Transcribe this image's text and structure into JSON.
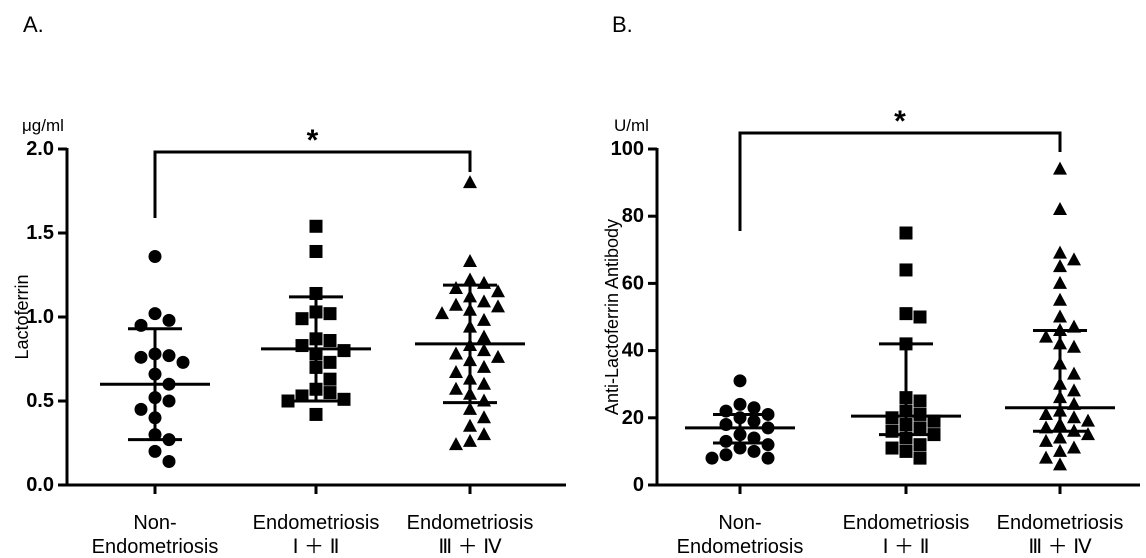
{
  "chart_data": [
    {
      "type": "scatter",
      "panel_label": "A.",
      "unit": "μg/ml",
      "ylabel": "Lactoferrin",
      "xlabel": "",
      "ylim": [
        0,
        2.0
      ],
      "yticks": [
        "0.0",
        "0.5",
        "1.0",
        "1.5",
        "2.0"
      ],
      "categories": [
        [
          "Non-",
          "Endometriosis"
        ],
        [
          "Endometriosis",
          "Ⅰ ＋ Ⅱ"
        ],
        [
          "Endometriosis",
          "Ⅲ ＋ Ⅳ"
        ]
      ],
      "marker_shapes": [
        "circle",
        "square",
        "triangle"
      ],
      "series": [
        {
          "values": [
            1.36,
            1.02,
            0.98,
            0.95,
            0.78,
            0.77,
            0.76,
            0.73,
            0.66,
            0.6,
            0.52,
            0.5,
            0.45,
            0.4,
            0.3,
            0.27,
            0.2,
            0.14
          ],
          "mean": 0.6,
          "sd_low": 0.27,
          "sd_high": 0.93
        },
        {
          "values": [
            1.54,
            1.39,
            1.14,
            1.03,
            1.02,
            0.99,
            0.87,
            0.86,
            0.83,
            0.8,
            0.78,
            0.73,
            0.7,
            0.63,
            0.57,
            0.55,
            0.53,
            0.51,
            0.5,
            0.42
          ],
          "mean": 0.81,
          "sd_low": 0.5,
          "sd_high": 1.12
        },
        {
          "values": [
            1.8,
            1.33,
            1.22,
            1.2,
            1.17,
            1.15,
            1.12,
            1.09,
            1.07,
            1.06,
            1.04,
            1.02,
            0.98,
            0.94,
            0.88,
            0.83,
            0.8,
            0.78,
            0.76,
            0.74,
            0.7,
            0.67,
            0.63,
            0.6,
            0.57,
            0.54,
            0.5,
            0.45,
            0.4,
            0.35,
            0.3,
            0.26,
            0.24
          ],
          "mean": 0.84,
          "sd_low": 0.49,
          "sd_high": 1.19
        }
      ],
      "significance": {
        "from": 0,
        "to": 2,
        "label": "*"
      }
    },
    {
      "type": "scatter",
      "panel_label": "B.",
      "unit": "U/ml",
      "ylabel": "Anti-Lactoferrin Antibody",
      "xlabel": "",
      "ylim": [
        0,
        100
      ],
      "yticks": [
        "0",
        "20",
        "40",
        "60",
        "80",
        "100"
      ],
      "categories": [
        [
          "Non-",
          "Endometriosis"
        ],
        [
          "Endometriosis",
          "Ⅰ ＋ Ⅱ"
        ],
        [
          "Endometriosis",
          "Ⅲ ＋ Ⅳ"
        ]
      ],
      "marker_shapes": [
        "circle",
        "square",
        "triangle"
      ],
      "series": [
        {
          "values": [
            31,
            24,
            23,
            22,
            21,
            20,
            19,
            18,
            17,
            15,
            14,
            13,
            12,
            11,
            10,
            9,
            8,
            8
          ],
          "mean": 17,
          "sd_low": 12.5,
          "sd_high": 21
        },
        {
          "values": [
            75,
            64,
            51,
            50,
            42,
            26,
            25,
            22,
            21,
            20,
            19,
            18,
            17,
            16,
            15,
            14,
            12,
            11,
            10,
            8
          ],
          "mean": 20.5,
          "sd_low": 15,
          "sd_high": 42
        },
        {
          "values": [
            94,
            82,
            69,
            67,
            65,
            60,
            55,
            50,
            47,
            46,
            44,
            42,
            41,
            36,
            33,
            30,
            28,
            26,
            24,
            22,
            21,
            20,
            19,
            18,
            17,
            16,
            15,
            14,
            13,
            11,
            10,
            8,
            6
          ],
          "mean": 23,
          "sd_low": 16,
          "sd_high": 46
        }
      ],
      "significance": {
        "from": 0,
        "to": 2,
        "label": "*"
      }
    }
  ]
}
